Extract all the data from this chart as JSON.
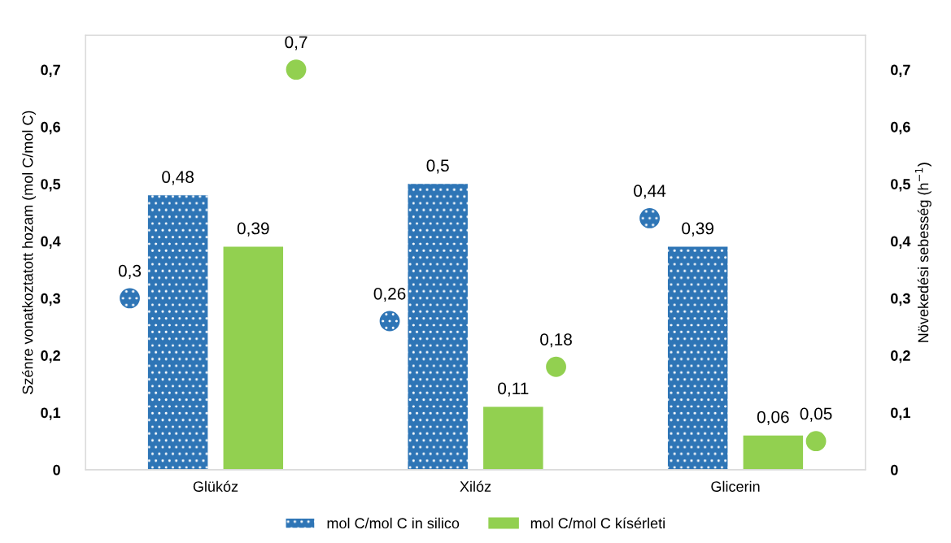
{
  "chart_data": {
    "type": "bar",
    "categories": [
      "Glükóz",
      "Xilóz",
      "Glicerin"
    ],
    "ylabel": "Szénre vonatkoztatott hozam (mol C/mol C)",
    "y2label": "Növekedési sebesség (h$^{−1}$)",
    "ylim": [
      0,
      0.76
    ],
    "yticks": [
      {
        "value": 0,
        "label": "0"
      },
      {
        "value": 0.1,
        "label": "0,1"
      },
      {
        "value": 0.2,
        "label": "0,2"
      },
      {
        "value": 0.3,
        "label": "0,3"
      },
      {
        "value": 0.4,
        "label": "0,4"
      },
      {
        "value": 0.5,
        "label": "0,5"
      },
      {
        "value": 0.6,
        "label": "0,6"
      },
      {
        "value": 0.7,
        "label": "0,7"
      }
    ],
    "y2lim": [
      0,
      0.76
    ],
    "y2ticks": [
      {
        "value": 0,
        "label": "0"
      },
      {
        "value": 0.1,
        "label": "0,1"
      },
      {
        "value": 0.2,
        "label": "0,2"
      },
      {
        "value": 0.3,
        "label": "0,3"
      },
      {
        "value": 0.4,
        "label": "0,4"
      },
      {
        "value": 0.5,
        "label": "0,5"
      },
      {
        "value": 0.6,
        "label": "0,6"
      },
      {
        "value": 0.7,
        "label": "0,7"
      }
    ],
    "grid": false,
    "legend": "bottom",
    "series": [
      {
        "name": "mol C/mol C in silico",
        "color": "#2e75b6",
        "values": [
          0.48,
          0.5,
          0.39
        ],
        "value_labels": [
          "0,48",
          "0,5",
          "0,39"
        ]
      },
      {
        "name": "mol C/mol C kísérleti",
        "color": "#92d050",
        "values": [
          0.39,
          0.11,
          0.06
        ],
        "value_labels": [
          "0,39",
          "0,11",
          "0,06"
        ]
      },
      {
        "type": "scatter",
        "axis": "y2",
        "color": "#2e75b6",
        "x": [
          "Glükóz",
          "Xilóz",
          "Glicerin"
        ],
        "values": [
          0.3,
          0.26,
          0.44
        ],
        "value_labels": [
          "0,3",
          "0,26",
          "0,44"
        ],
        "marker": "circle"
      },
      {
        "type": "scatter",
        "axis": "y2",
        "color": "#92d050",
        "x": [
          "Glükóz",
          "Xilóz",
          "Glicerin"
        ],
        "values": [
          0.7,
          0.18,
          0.05
        ],
        "value_labels": [
          "0,7",
          "0,18",
          "0,05"
        ],
        "marker": "circle"
      }
    ]
  }
}
